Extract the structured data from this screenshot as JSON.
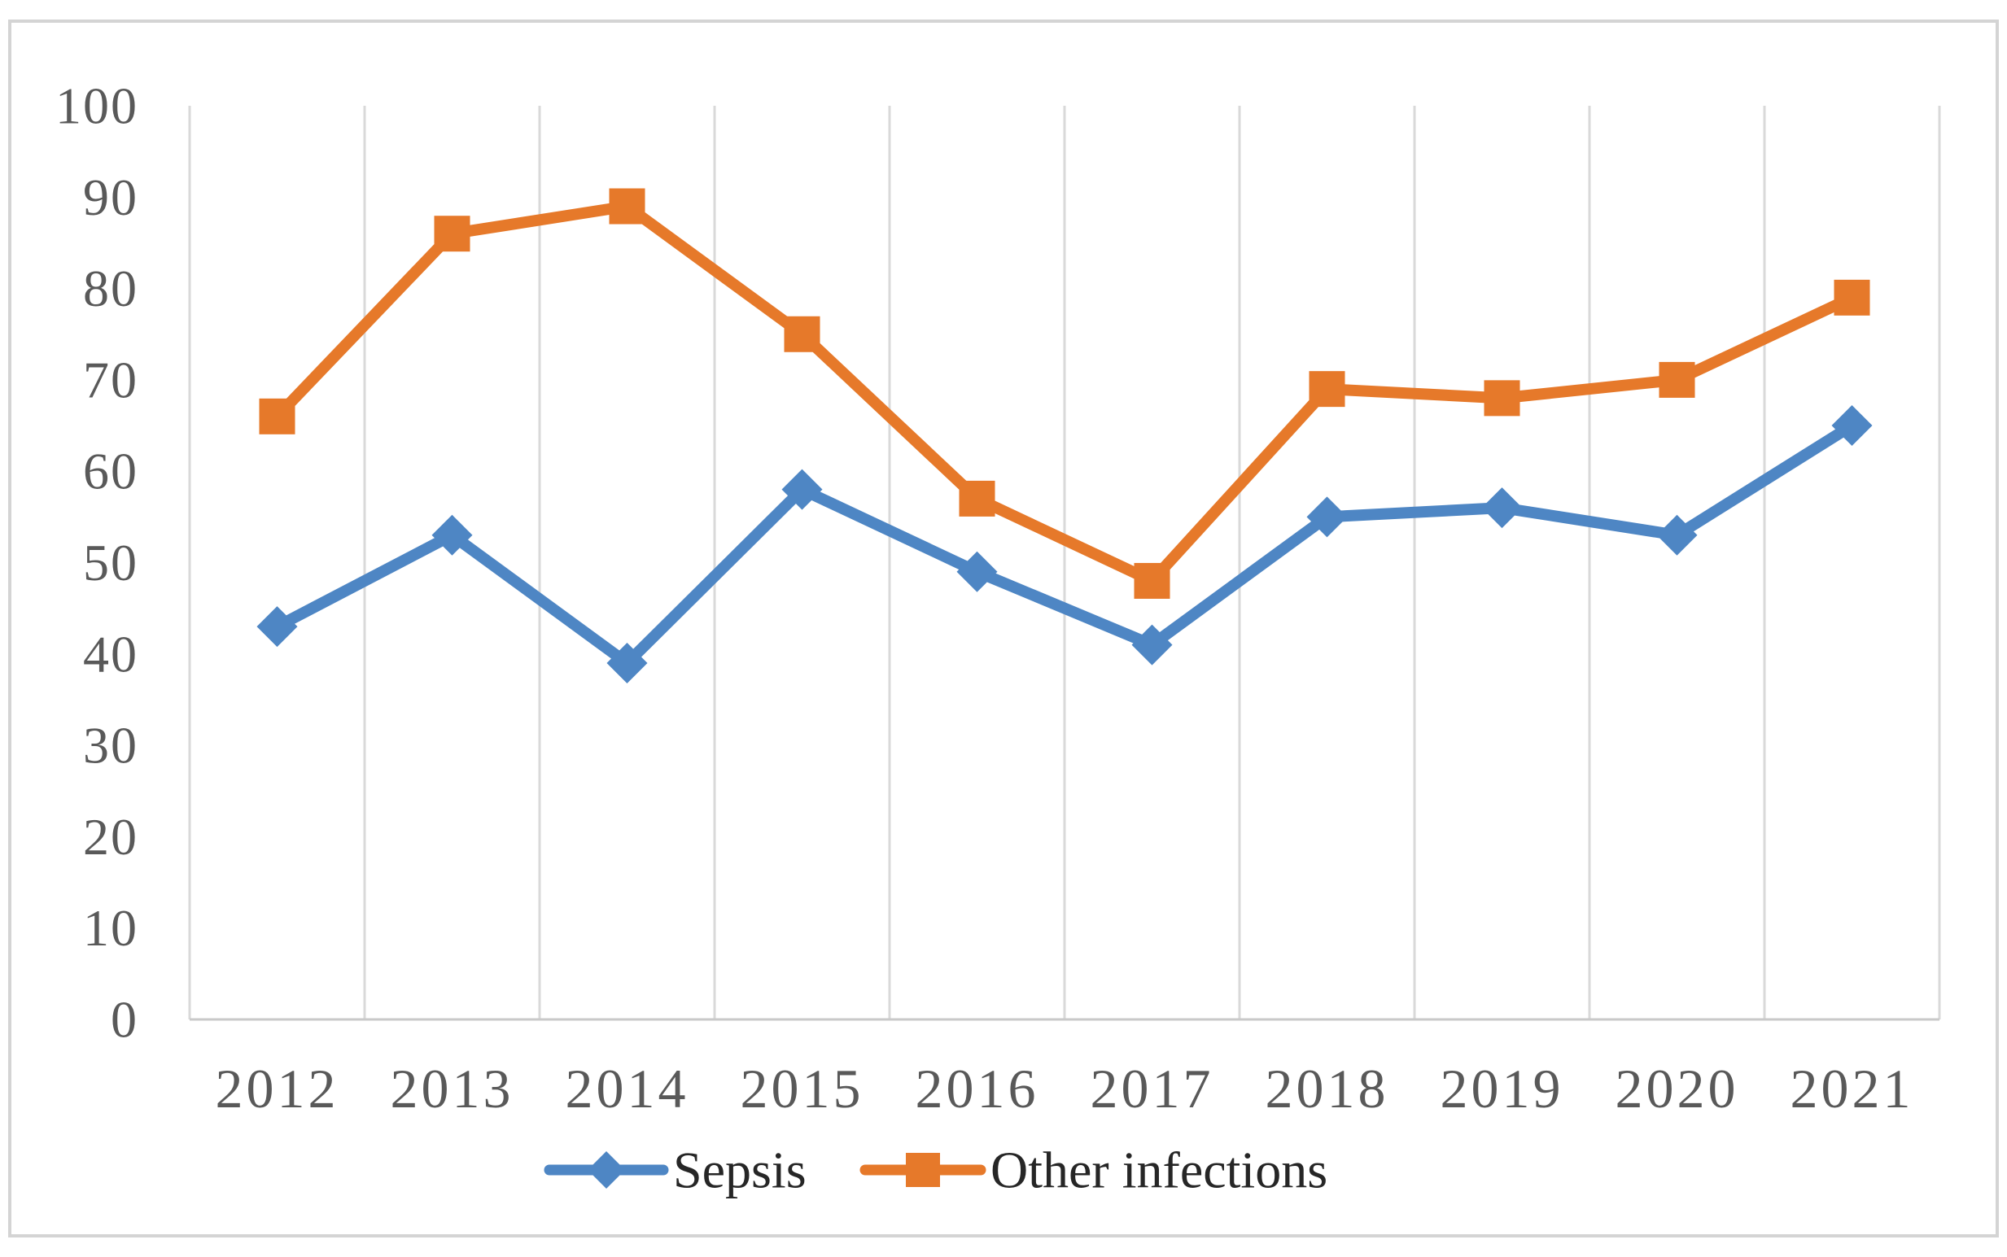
{
  "figure": {
    "background": "#ffffff",
    "border_color": "#d4d4d4"
  },
  "chart_data": {
    "type": "line",
    "title": "",
    "xlabel": "",
    "ylabel": "",
    "categories": [
      "2012",
      "2013",
      "2014",
      "2015",
      "2016",
      "2017",
      "2018",
      "2019",
      "2020",
      "2021"
    ],
    "series": [
      {
        "name": "Sepsis",
        "marker": "diamond",
        "color": "#4E86C4",
        "values": [
          43,
          53,
          39,
          58,
          49,
          41,
          55,
          56,
          53,
          65
        ]
      },
      {
        "name": "Other infections",
        "marker": "square",
        "color": "#E6792A",
        "values": [
          66,
          86,
          89,
          75,
          57,
          48,
          69,
          68,
          70,
          79
        ]
      }
    ],
    "ylim": [
      0,
      100
    ],
    "yticks": [
      "0",
      "10",
      "20",
      "30",
      "40",
      "50",
      "60",
      "70",
      "80",
      "90",
      "100"
    ],
    "grid": "vertical-only",
    "gridline_color": "#d9d9d9",
    "axis_line_color": "#c9c9c9",
    "tick_label_color": "#595959",
    "legend": {
      "position": "bottom-center",
      "text_color": "#262626"
    }
  }
}
